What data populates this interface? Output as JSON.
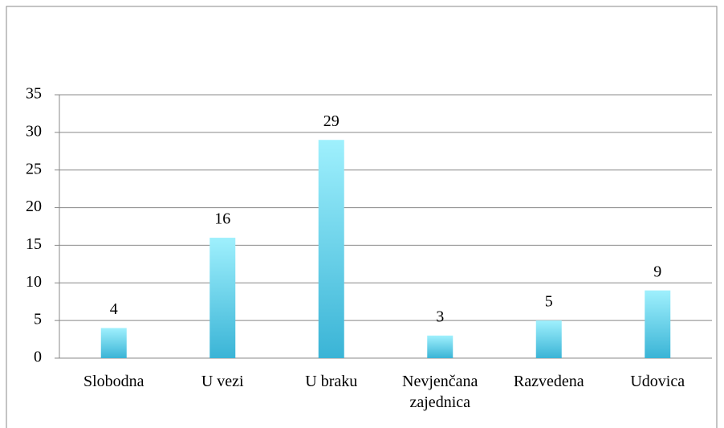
{
  "chart_data": {
    "type": "bar",
    "categories": [
      "Slobodna",
      "U vezi",
      "U braku",
      "Nevjenčana zajednica",
      "Razvedena",
      "Udovica"
    ],
    "values": [
      4,
      16,
      29,
      3,
      5,
      9
    ],
    "color": "#4cc3e0",
    "ylim": [
      0,
      35
    ],
    "yticks": [
      0,
      5,
      10,
      15,
      20,
      25,
      30,
      35
    ],
    "grid": true
  }
}
